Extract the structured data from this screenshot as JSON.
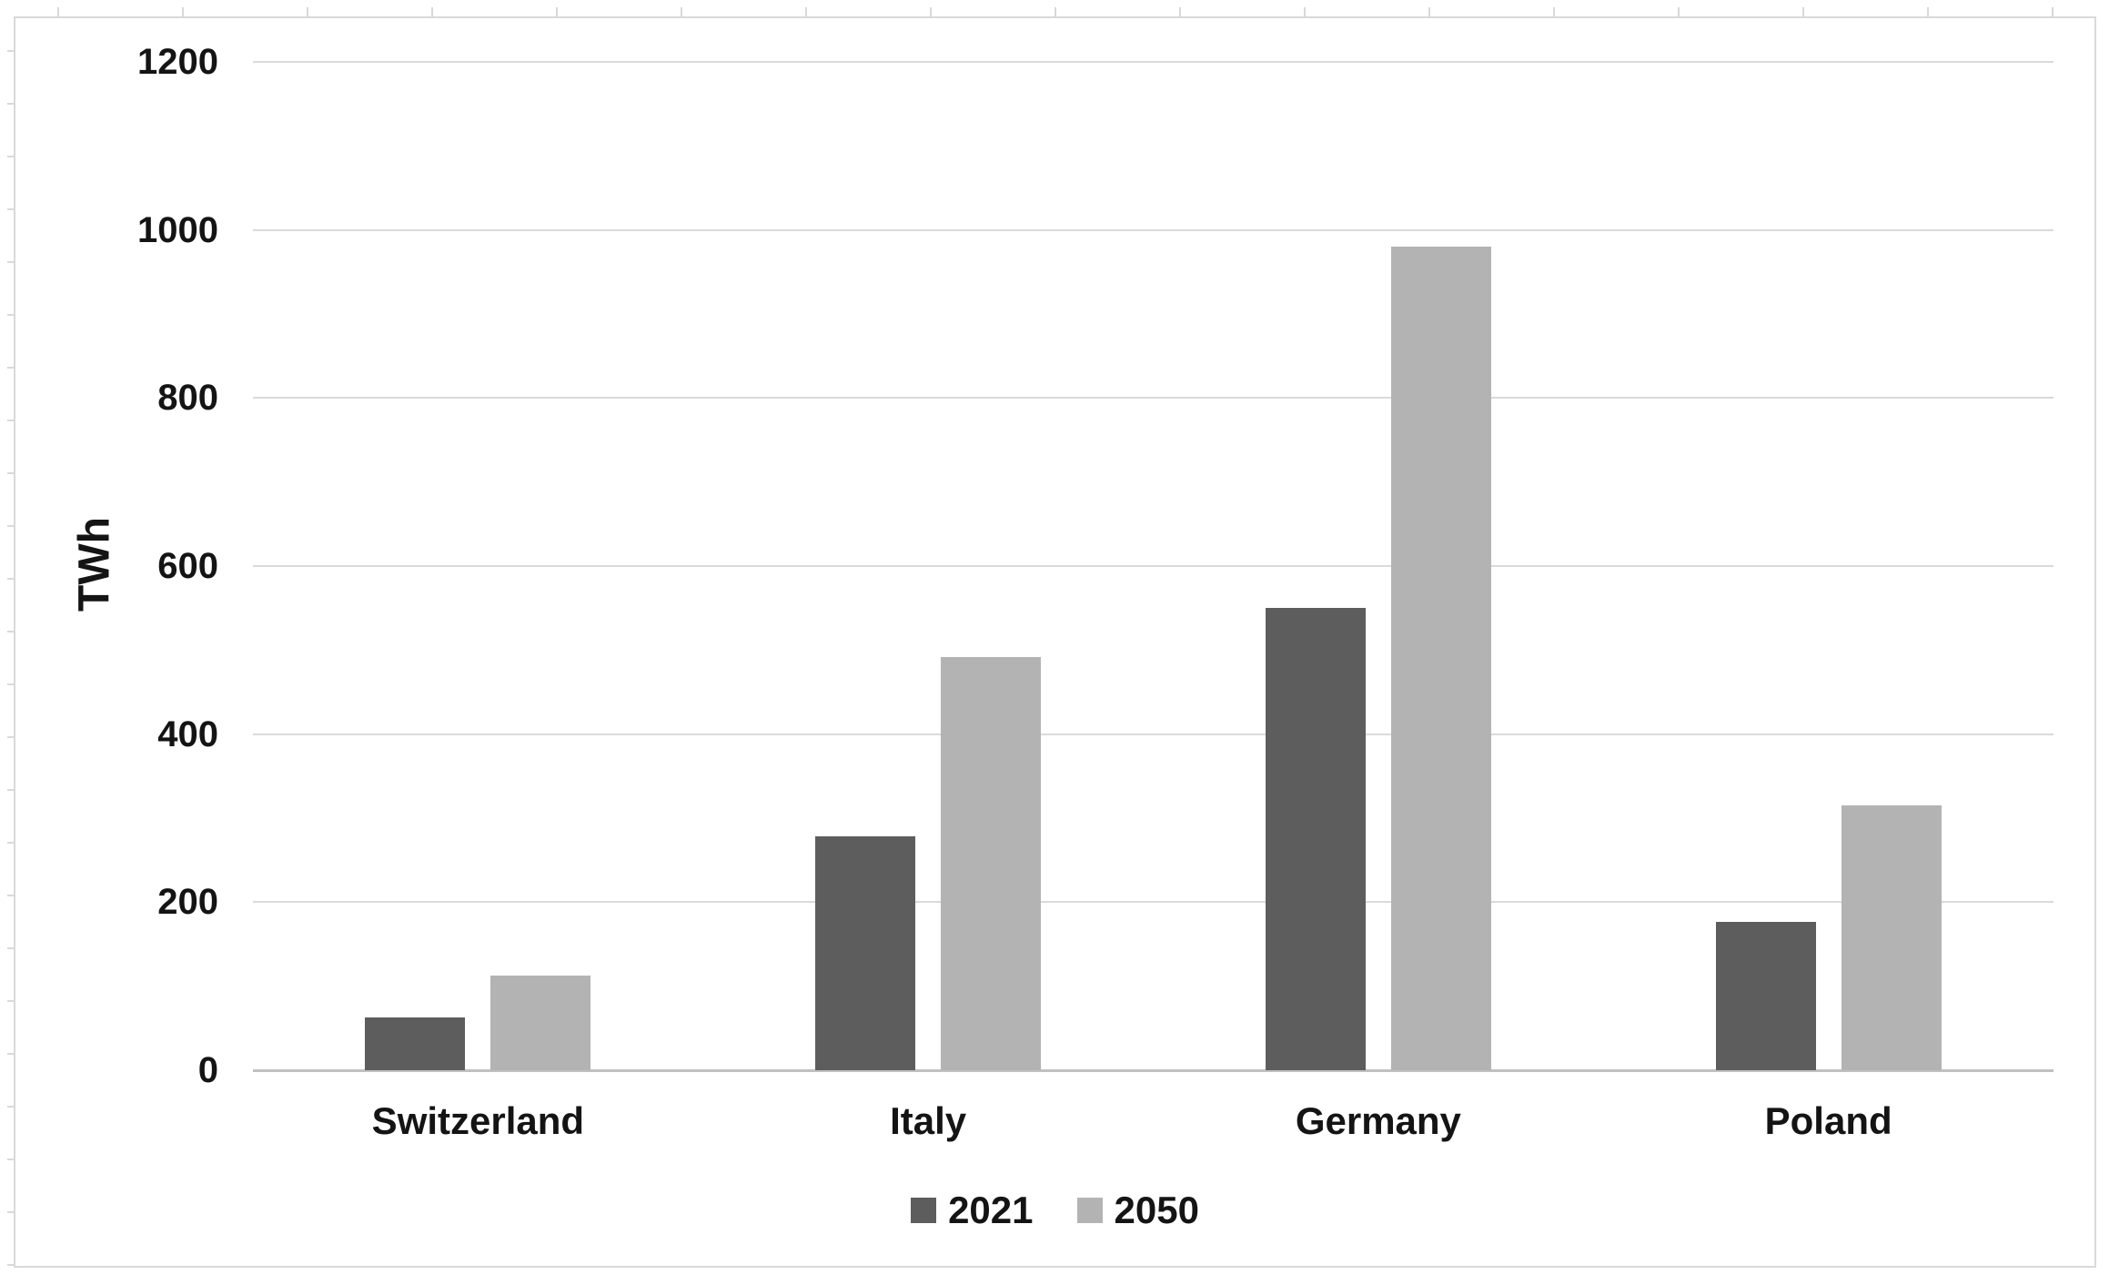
{
  "chart_data": {
    "type": "bar",
    "categories": [
      "Switzerland",
      "Italy",
      "Germany",
      "Poland"
    ],
    "series": [
      {
        "name": "2021",
        "color": "#5d5d5d",
        "values": [
          63,
          278,
          550,
          177
        ]
      },
      {
        "name": "2050",
        "color": "#b3b3b3",
        "values": [
          113,
          492,
          980,
          315
        ]
      }
    ],
    "title": "",
    "xlabel": "",
    "ylabel": "TWh",
    "ylim": [
      0,
      1200
    ],
    "ytick_step": 200,
    "ytick_labels": [
      "0",
      "200",
      "400",
      "600",
      "800",
      "1000",
      "1200"
    ],
    "grid": true,
    "legend_position": "bottom"
  },
  "style": {
    "frame_border_color": "#d9d9d9",
    "gridline_color": "#dadada",
    "axis_line_color": "#c0c0c0",
    "text_color": "#141414",
    "background": "#ffffff"
  }
}
